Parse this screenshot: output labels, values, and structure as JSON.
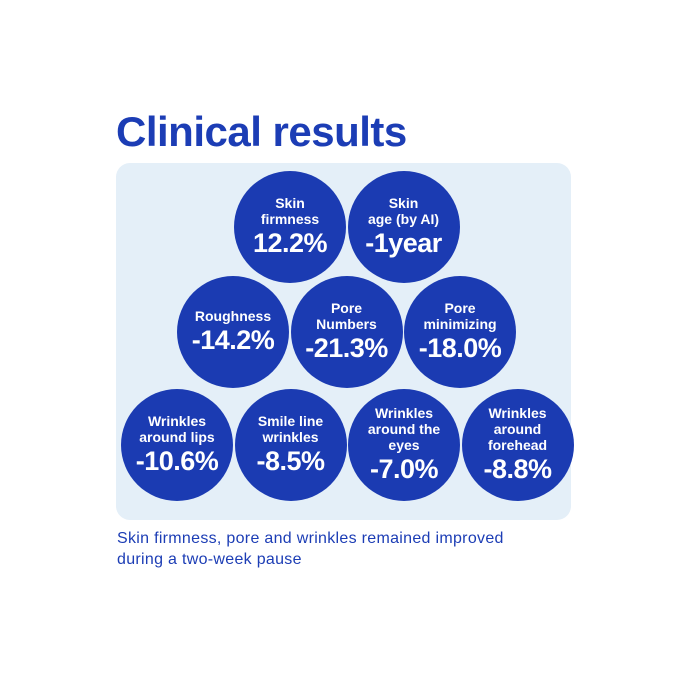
{
  "title": "Clinical results",
  "results": [
    {
      "label": [
        "Skin",
        "firmness"
      ],
      "value": "12.2%"
    },
    {
      "label": [
        "Skin",
        "age (by AI)"
      ],
      "value": "-1year"
    },
    {
      "label": [
        "Roughness"
      ],
      "value": "-14.2%"
    },
    {
      "label": [
        "Pore",
        "Numbers"
      ],
      "value": "-21.3%"
    },
    {
      "label": [
        "Pore",
        "minimizing"
      ],
      "value": "-18.0%"
    },
    {
      "label": [
        "Wrinkles",
        "around lips"
      ],
      "value": "-10.6%"
    },
    {
      "label": [
        "Smile line",
        "wrinkles"
      ],
      "value": "-8.5%"
    },
    {
      "label": [
        "Wrinkles",
        "around the",
        "eyes"
      ],
      "value": "-7.0%"
    },
    {
      "label": [
        "Wrinkles",
        "around",
        "forehead"
      ],
      "value": "-8.8%"
    }
  ],
  "footnote": "Skin firmness, pore and wrinkles remained improved during a two-week pause"
}
